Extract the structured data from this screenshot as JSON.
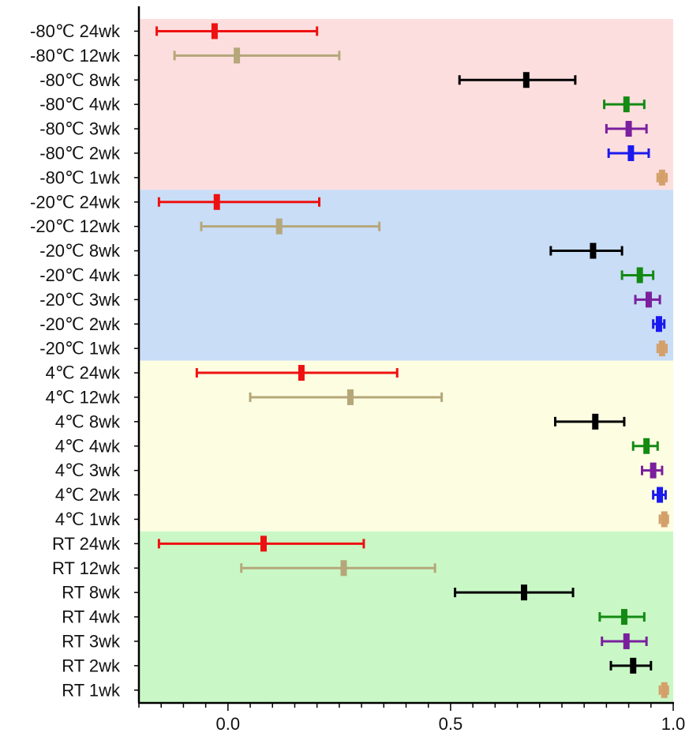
{
  "chart_data": {
    "type": "forest",
    "title": "",
    "xlabel": "",
    "ylabel": "",
    "xlim": [
      -0.2,
      1.0
    ],
    "x_ticks": [
      0.0,
      0.5,
      1.0
    ],
    "x_tick_labels": [
      "0.0",
      "0.5",
      "1.0"
    ],
    "grid": false,
    "colors": {
      "24wk": "#ee1111",
      "12wk": "#b5a77a",
      "8wk": "#000000",
      "4wk": "#138a13",
      "3wk": "#7a1f9e",
      "2wk": "#1a1aee",
      "1wk": "#d4a06a",
      "rt_2wk": "#000000"
    },
    "groups": [
      {
        "name": "-80℃",
        "band_color": "#fddede",
        "rows": [
          {
            "label": "-80℃ 24wk",
            "mean": -0.03,
            "lower": -0.16,
            "upper": 0.2,
            "color_key": "24wk"
          },
          {
            "label": "-80℃ 12wk",
            "mean": 0.02,
            "lower": -0.12,
            "upper": 0.25,
            "color_key": "12wk"
          },
          {
            "label": "-80℃ 8wk",
            "mean": 0.67,
            "lower": 0.52,
            "upper": 0.78,
            "color_key": "8wk"
          },
          {
            "label": "-80℃ 4wk",
            "mean": 0.895,
            "lower": 0.845,
            "upper": 0.935,
            "color_key": "4wk"
          },
          {
            "label": "-80℃ 3wk",
            "mean": 0.9,
            "lower": 0.85,
            "upper": 0.94,
            "color_key": "3wk"
          },
          {
            "label": "-80℃ 2wk",
            "mean": 0.905,
            "lower": 0.855,
            "upper": 0.945,
            "color_key": "2wk"
          },
          {
            "label": "-80℃ 1wk",
            "mean": 0.975,
            "lower": 0.965,
            "upper": 0.985,
            "color_key": "1wk"
          }
        ]
      },
      {
        "name": "-20℃",
        "band_color": "#c9ddf7",
        "rows": [
          {
            "label": "-20℃ 24wk",
            "mean": -0.025,
            "lower": -0.155,
            "upper": 0.205,
            "color_key": "24wk"
          },
          {
            "label": "-20℃ 12wk",
            "mean": 0.115,
            "lower": -0.06,
            "upper": 0.34,
            "color_key": "12wk"
          },
          {
            "label": "-20℃ 8wk",
            "mean": 0.82,
            "lower": 0.725,
            "upper": 0.885,
            "color_key": "8wk"
          },
          {
            "label": "-20℃ 4wk",
            "mean": 0.925,
            "lower": 0.885,
            "upper": 0.955,
            "color_key": "4wk"
          },
          {
            "label": "-20℃ 3wk",
            "mean": 0.945,
            "lower": 0.915,
            "upper": 0.97,
            "color_key": "3wk"
          },
          {
            "label": "-20℃ 2wk",
            "mean": 0.968,
            "lower": 0.955,
            "upper": 0.98,
            "color_key": "2wk"
          },
          {
            "label": "-20℃ 1wk",
            "mean": 0.975,
            "lower": 0.965,
            "upper": 0.985,
            "color_key": "1wk"
          }
        ]
      },
      {
        "name": "4℃",
        "band_color": "#fdfde2",
        "rows": [
          {
            "label": "4℃ 24wk",
            "mean": 0.165,
            "lower": -0.07,
            "upper": 0.38,
            "color_key": "24wk"
          },
          {
            "label": "4℃ 12wk",
            "mean": 0.275,
            "lower": 0.05,
            "upper": 0.48,
            "color_key": "12wk"
          },
          {
            "label": "4℃ 8wk",
            "mean": 0.825,
            "lower": 0.735,
            "upper": 0.89,
            "color_key": "8wk"
          },
          {
            "label": "4℃ 4wk",
            "mean": 0.94,
            "lower": 0.91,
            "upper": 0.965,
            "color_key": "4wk"
          },
          {
            "label": "4℃ 3wk",
            "mean": 0.955,
            "lower": 0.93,
            "upper": 0.975,
            "color_key": "3wk"
          },
          {
            "label": "4℃ 2wk",
            "mean": 0.97,
            "lower": 0.955,
            "upper": 0.983,
            "color_key": "2wk"
          },
          {
            "label": "4℃ 1wk",
            "mean": 0.98,
            "lower": 0.97,
            "upper": 0.988,
            "color_key": "1wk"
          }
        ]
      },
      {
        "name": "RT",
        "band_color": "#c9f8c6",
        "rows": [
          {
            "label": "RT 24wk",
            "mean": 0.08,
            "lower": -0.155,
            "upper": 0.305,
            "color_key": "24wk"
          },
          {
            "label": "RT 12wk",
            "mean": 0.26,
            "lower": 0.03,
            "upper": 0.465,
            "color_key": "12wk"
          },
          {
            "label": "RT 8wk",
            "mean": 0.665,
            "lower": 0.51,
            "upper": 0.775,
            "color_key": "8wk"
          },
          {
            "label": "RT 4wk",
            "mean": 0.89,
            "lower": 0.835,
            "upper": 0.935,
            "color_key": "4wk"
          },
          {
            "label": "RT 3wk",
            "mean": 0.895,
            "lower": 0.84,
            "upper": 0.94,
            "color_key": "3wk"
          },
          {
            "label": "RT 2wk",
            "mean": 0.91,
            "lower": 0.86,
            "upper": 0.95,
            "color_key": "rt_2wk"
          },
          {
            "label": "RT 1wk",
            "mean": 0.98,
            "lower": 0.97,
            "upper": 0.988,
            "color_key": "1wk"
          }
        ]
      }
    ]
  }
}
